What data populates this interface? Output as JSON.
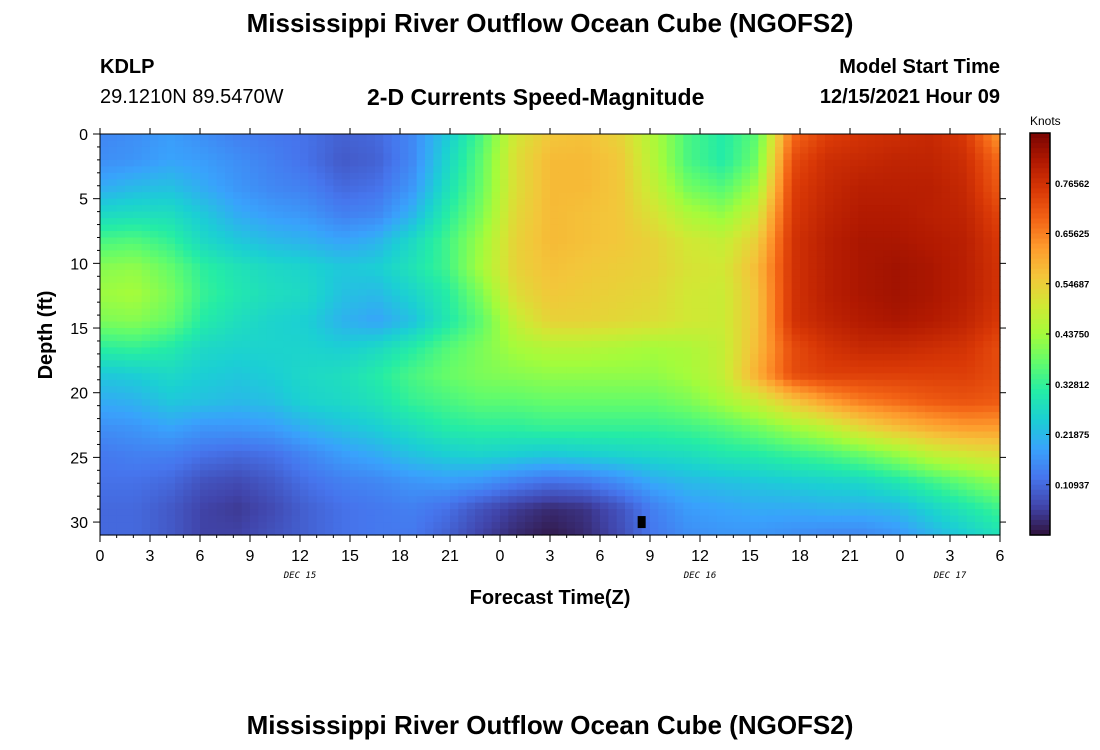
{
  "header": {
    "title": "Mississippi River Outflow Ocean Cube (NGOFS2)",
    "station": "KDLP",
    "coordinates": "29.1210N  89.5470W",
    "subtitle": "2-D Currents Speed-Magnitude",
    "model_start_label": "Model Start Time",
    "model_start_value": "12/15/2021 Hour 09"
  },
  "footer": {
    "title_repeat": "Mississippi River Outflow Ocean Cube (NGOFS2)"
  },
  "chart_data": {
    "type": "heatmap",
    "title": "2-D Currents Speed-Magnitude",
    "xlabel": "Forecast Time(Z)",
    "ylabel": "Depth (ft)",
    "xlim": [
      0,
      54
    ],
    "ylim": [
      0,
      31
    ],
    "y_inverted": true,
    "x_ticks": [
      0,
      3,
      6,
      9,
      12,
      15,
      18,
      21,
      24,
      27,
      30,
      33,
      36,
      39,
      42,
      45,
      48,
      51,
      54
    ],
    "x_tick_labels": [
      "0",
      "3",
      "6",
      "9",
      "12",
      "15",
      "18",
      "21",
      "0",
      "3",
      "6",
      "9",
      "12",
      "15",
      "18",
      "21",
      "0",
      "3",
      "6"
    ],
    "day_labels": [
      {
        "text": "DEC 15",
        "hour": 12
      },
      {
        "text": "DEC 16",
        "hour": 36
      },
      {
        "text": "DEC 17",
        "hour": 51
      }
    ],
    "y_ticks": [
      0,
      5,
      10,
      15,
      20,
      25,
      30
    ],
    "y_tick_labels": [
      "0",
      "5",
      "10",
      "15",
      "20",
      "25",
      "30"
    ],
    "colorbar": {
      "unit": "Knots",
      "min": 0,
      "max": 0.875,
      "tick_values": [
        0.76562,
        0.65625,
        0.54687,
        0.4375,
        0.32812,
        0.21875,
        0.10937
      ],
      "tick_labels": [
        "0.76562",
        "0.65625",
        "0.54687",
        "0.43750",
        "0.32812",
        "0.21875",
        "0.10937"
      ],
      "colors": [
        "#30123b",
        "#4145ab",
        "#4675ed",
        "#39a2fc",
        "#1bcfd4",
        "#24eca6",
        "#61fc6c",
        "#a4fc3b",
        "#d1e834",
        "#f3c63a",
        "#fe9b2d",
        "#f36315",
        "#d93806",
        "#b11901",
        "#7a0402"
      ]
    },
    "marker": {
      "hour": 32.5,
      "depth": 30,
      "shape": "square",
      "color": "#000000"
    },
    "z": [
      [
        0.15,
        0.16,
        0.18,
        0.16,
        0.14,
        0.13,
        0.12,
        0.1,
        0.11,
        0.15,
        0.24,
        0.35,
        0.5,
        0.56,
        0.57,
        0.54,
        0.45,
        0.35,
        0.31,
        0.37,
        0.68,
        0.74,
        0.76,
        0.77,
        0.78,
        0.75,
        0.62
      ],
      [
        0.16,
        0.17,
        0.19,
        0.18,
        0.16,
        0.14,
        0.12,
        0.09,
        0.1,
        0.15,
        0.26,
        0.37,
        0.52,
        0.58,
        0.58,
        0.56,
        0.46,
        0.35,
        0.31,
        0.39,
        0.72,
        0.77,
        0.78,
        0.79,
        0.79,
        0.77,
        0.68
      ],
      [
        0.2,
        0.22,
        0.23,
        0.2,
        0.17,
        0.15,
        0.14,
        0.11,
        0.12,
        0.17,
        0.28,
        0.38,
        0.52,
        0.58,
        0.58,
        0.56,
        0.48,
        0.39,
        0.36,
        0.44,
        0.74,
        0.78,
        0.8,
        0.8,
        0.8,
        0.78,
        0.7
      ],
      [
        0.27,
        0.28,
        0.28,
        0.24,
        0.2,
        0.18,
        0.17,
        0.14,
        0.15,
        0.21,
        0.31,
        0.4,
        0.53,
        0.58,
        0.57,
        0.56,
        0.51,
        0.45,
        0.42,
        0.5,
        0.75,
        0.79,
        0.81,
        0.81,
        0.8,
        0.79,
        0.73
      ],
      [
        0.35,
        0.36,
        0.33,
        0.27,
        0.24,
        0.22,
        0.21,
        0.19,
        0.21,
        0.27,
        0.34,
        0.43,
        0.54,
        0.58,
        0.57,
        0.56,
        0.54,
        0.5,
        0.48,
        0.55,
        0.76,
        0.8,
        0.82,
        0.82,
        0.81,
        0.8,
        0.75
      ],
      [
        0.41,
        0.42,
        0.38,
        0.32,
        0.29,
        0.27,
        0.26,
        0.24,
        0.25,
        0.29,
        0.34,
        0.44,
        0.54,
        0.57,
        0.56,
        0.55,
        0.54,
        0.51,
        0.5,
        0.58,
        0.76,
        0.8,
        0.82,
        0.83,
        0.82,
        0.8,
        0.76
      ],
      [
        0.43,
        0.44,
        0.4,
        0.33,
        0.3,
        0.28,
        0.27,
        0.23,
        0.22,
        0.26,
        0.31,
        0.4,
        0.52,
        0.56,
        0.55,
        0.54,
        0.53,
        0.5,
        0.49,
        0.57,
        0.76,
        0.8,
        0.82,
        0.83,
        0.82,
        0.8,
        0.76
      ],
      [
        0.4,
        0.41,
        0.38,
        0.31,
        0.28,
        0.26,
        0.25,
        0.21,
        0.19,
        0.23,
        0.3,
        0.37,
        0.48,
        0.54,
        0.54,
        0.53,
        0.52,
        0.5,
        0.49,
        0.57,
        0.76,
        0.79,
        0.81,
        0.82,
        0.81,
        0.79,
        0.75
      ],
      [
        0.32,
        0.33,
        0.31,
        0.27,
        0.26,
        0.26,
        0.26,
        0.25,
        0.27,
        0.31,
        0.36,
        0.4,
        0.44,
        0.46,
        0.46,
        0.45,
        0.44,
        0.45,
        0.48,
        0.58,
        0.72,
        0.76,
        0.78,
        0.78,
        0.77,
        0.76,
        0.72
      ],
      [
        0.24,
        0.25,
        0.27,
        0.25,
        0.24,
        0.25,
        0.27,
        0.28,
        0.31,
        0.35,
        0.38,
        0.4,
        0.41,
        0.42,
        0.42,
        0.42,
        0.42,
        0.44,
        0.48,
        0.6,
        0.72,
        0.74,
        0.74,
        0.74,
        0.74,
        0.74,
        0.72
      ],
      [
        0.2,
        0.21,
        0.24,
        0.23,
        0.22,
        0.23,
        0.26,
        0.27,
        0.29,
        0.33,
        0.35,
        0.37,
        0.37,
        0.38,
        0.38,
        0.38,
        0.38,
        0.4,
        0.44,
        0.49,
        0.56,
        0.62,
        0.66,
        0.68,
        0.7,
        0.71,
        0.7
      ],
      [
        0.16,
        0.17,
        0.19,
        0.17,
        0.17,
        0.18,
        0.21,
        0.23,
        0.25,
        0.28,
        0.31,
        0.32,
        0.32,
        0.33,
        0.33,
        0.33,
        0.33,
        0.34,
        0.36,
        0.39,
        0.43,
        0.47,
        0.53,
        0.57,
        0.6,
        0.62,
        0.62
      ],
      [
        0.13,
        0.14,
        0.14,
        0.12,
        0.11,
        0.12,
        0.15,
        0.18,
        0.2,
        0.23,
        0.25,
        0.26,
        0.25,
        0.24,
        0.25,
        0.26,
        0.27,
        0.28,
        0.3,
        0.31,
        0.33,
        0.35,
        0.38,
        0.42,
        0.47,
        0.5,
        0.52
      ],
      [
        0.12,
        0.12,
        0.11,
        0.08,
        0.07,
        0.09,
        0.12,
        0.14,
        0.15,
        0.17,
        0.18,
        0.17,
        0.14,
        0.12,
        0.13,
        0.16,
        0.2,
        0.22,
        0.23,
        0.24,
        0.25,
        0.26,
        0.27,
        0.3,
        0.34,
        0.38,
        0.42
      ],
      [
        0.11,
        0.11,
        0.09,
        0.06,
        0.05,
        0.07,
        0.1,
        0.12,
        0.13,
        0.14,
        0.12,
        0.08,
        0.05,
        0.03,
        0.04,
        0.08,
        0.14,
        0.18,
        0.19,
        0.2,
        0.2,
        0.21,
        0.21,
        0.22,
        0.26,
        0.3,
        0.34
      ],
      [
        0.11,
        0.11,
        0.09,
        0.06,
        0.06,
        0.08,
        0.1,
        0.12,
        0.13,
        0.13,
        0.1,
        0.06,
        0.03,
        0.01,
        0.03,
        0.07,
        0.13,
        0.16,
        0.17,
        0.17,
        0.16,
        0.15,
        0.15,
        0.17,
        0.21,
        0.25,
        0.29
      ]
    ]
  }
}
